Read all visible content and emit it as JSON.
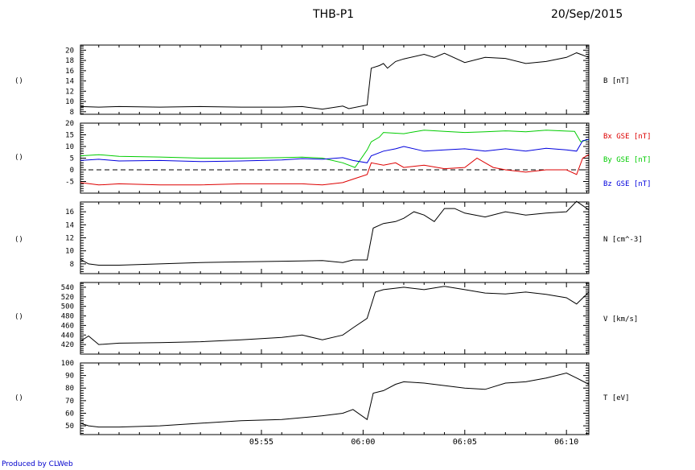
{
  "header": {
    "title": "THB-P1",
    "date": "20/Sep/2015"
  },
  "footer": {
    "credit": "Produced by CLWeb"
  },
  "colors": {
    "black": "#000000",
    "red": "#dd0000",
    "green": "#00cc00",
    "blue": "#0000dd"
  },
  "x_axis": {
    "ticks": [
      "05:55",
      "06:00",
      "06:05",
      "06:10"
    ],
    "tick_minutes": [
      5,
      10,
      15,
      20
    ],
    "range_minutes": [
      -3.9,
      21.1
    ]
  },
  "chart_data": [
    {
      "type": "line",
      "ylabel": "B [nT]",
      "side_label": "()",
      "ylim": [
        7.5,
        21
      ],
      "yticks": [
        8,
        10,
        12,
        14,
        16,
        18,
        20
      ],
      "series": [
        {
          "name": "B [nT]",
          "color": "black",
          "x": [
            -3.9,
            -3,
            -2,
            0,
            2,
            4,
            6,
            7,
            8,
            9,
            9.3,
            10.2,
            10.4,
            10.8,
            11,
            11.2,
            11.6,
            12,
            13,
            13.5,
            14,
            15,
            16,
            17,
            18,
            19,
            20,
            20.5,
            21.1
          ],
          "y": [
            9,
            8.9,
            9,
            8.9,
            9,
            8.9,
            8.9,
            9.0,
            8.5,
            9.1,
            8.6,
            9.3,
            16.5,
            17,
            17.4,
            16.5,
            17.8,
            18.3,
            19.2,
            18.6,
            19.4,
            17.6,
            18.6,
            18.4,
            17.4,
            17.8,
            18.6,
            19.5,
            18.6
          ]
        }
      ]
    },
    {
      "type": "line",
      "ylabel": "",
      "side_label": "()",
      "ylim": [
        -10,
        20
      ],
      "yticks": [
        -5,
        0,
        5,
        10,
        15,
        20
      ],
      "zero_line": true,
      "series": [
        {
          "name": "Bx GSE [nT]",
          "color": "red",
          "x": [
            -3.9,
            -3,
            -2,
            0,
            2,
            4,
            6,
            7,
            8,
            9,
            9.5,
            10.2,
            10.4,
            11,
            11.6,
            12,
            13,
            14,
            15,
            15.6,
            16,
            16.4,
            17,
            18,
            19,
            20,
            20.5,
            20.8,
            21.1
          ],
          "y": [
            -5.5,
            -6.5,
            -6,
            -6.5,
            -6.5,
            -6,
            -6,
            -6,
            -6.5,
            -5.5,
            -4,
            -2,
            3,
            2,
            3,
            1,
            2,
            0.5,
            1,
            5,
            3,
            1,
            0,
            -1,
            0,
            0,
            -2,
            5,
            6.5
          ]
        },
        {
          "name": "By GSE [nT]",
          "color": "green",
          "x": [
            -3.9,
            -3,
            -2,
            0,
            2,
            4,
            6,
            7,
            8,
            9,
            9.6,
            10.2,
            10.4,
            10.8,
            11,
            12,
            13,
            14,
            15,
            16,
            17,
            18,
            19,
            20,
            20.4,
            20.7,
            21.1
          ],
          "y": [
            6,
            6.5,
            5.8,
            5.5,
            5,
            5,
            5.2,
            5.4,
            5,
            3,
            1,
            8.5,
            12,
            14,
            16,
            15.5,
            17,
            16.5,
            16,
            16.3,
            16.7,
            16.3,
            17,
            16.6,
            16.5,
            12,
            13
          ]
        },
        {
          "name": "Bz GSE [nT]",
          "color": "blue",
          "x": [
            -3.9,
            -3,
            -2,
            0,
            2,
            4,
            6,
            7,
            8,
            9,
            9.5,
            10.2,
            10.4,
            11,
            11.6,
            12,
            13,
            14,
            15,
            16,
            17,
            18,
            19,
            20,
            20.5,
            20.8,
            21.1
          ],
          "y": [
            4,
            4.5,
            3.8,
            4,
            3.5,
            3.8,
            4.2,
            4.8,
            4.5,
            5.2,
            4,
            3,
            6,
            8,
            9,
            10,
            8,
            8.5,
            9,
            8,
            9,
            8,
            9.2,
            8.5,
            8,
            12.5,
            13
          ]
        }
      ]
    },
    {
      "type": "line",
      "ylabel": "N [cm^-3]",
      "side_label": "()",
      "ylim": [
        6.5,
        17.5
      ],
      "yticks": [
        8,
        10,
        12,
        14,
        16
      ],
      "series": [
        {
          "name": "N [cm^-3]",
          "color": "black",
          "x": [
            -3.9,
            -3.5,
            -3,
            -2,
            0,
            2,
            4,
            6,
            8,
            9,
            9.5,
            10.2,
            10.5,
            11,
            11.6,
            12,
            12.5,
            13,
            13.5,
            14,
            14.5,
            15,
            16,
            17,
            18,
            19,
            20,
            20.5,
            21.1
          ],
          "y": [
            8.7,
            8,
            7.8,
            7.8,
            8,
            8.2,
            8.3,
            8.4,
            8.5,
            8.2,
            8.6,
            8.6,
            13.5,
            14.2,
            14.5,
            15,
            16,
            15.5,
            14.5,
            16.5,
            16.5,
            15.8,
            15.2,
            16,
            15.5,
            15.8,
            16,
            17.6,
            16.3
          ]
        }
      ]
    },
    {
      "type": "line",
      "ylabel": "V [km/s]",
      "side_label": "()",
      "ylim": [
        400,
        550
      ],
      "yticks": [
        420,
        440,
        460,
        480,
        500,
        520,
        540
      ],
      "series": [
        {
          "name": "V [km/s]",
          "color": "black",
          "x": [
            -3.9,
            -3.5,
            -3,
            -2,
            0,
            2,
            4,
            6,
            7,
            8,
            9,
            9.5,
            10.2,
            10.6,
            11,
            11.6,
            12,
            13,
            14,
            15,
            16,
            17,
            18,
            19,
            20,
            20.5,
            21.1
          ],
          "y": [
            427,
            438,
            420,
            423,
            424,
            426,
            430,
            435,
            440,
            430,
            440,
            455,
            475,
            530,
            535,
            538,
            540,
            535,
            542,
            535,
            528,
            526,
            530,
            525,
            518,
            505,
            530
          ]
        }
      ]
    },
    {
      "type": "line",
      "ylabel": "T [eV]",
      "side_label": "()",
      "ylim": [
        43,
        100
      ],
      "yticks": [
        50,
        60,
        70,
        80,
        90,
        100
      ],
      "series": [
        {
          "name": "T [eV]",
          "color": "black",
          "x": [
            -3.9,
            -3.5,
            -3,
            -2,
            0,
            2,
            4,
            6,
            8,
            9,
            9.5,
            10.2,
            10.5,
            11,
            11.6,
            12,
            13,
            14,
            15,
            16,
            17,
            18,
            19,
            20,
            20.5,
            21.1
          ],
          "y": [
            52,
            50,
            49,
            49,
            50,
            52,
            54,
            55,
            58,
            60,
            63,
            55,
            76,
            78,
            83,
            85,
            84,
            82,
            80,
            79,
            84,
            85,
            88,
            92,
            88,
            83
          ]
        }
      ]
    }
  ]
}
